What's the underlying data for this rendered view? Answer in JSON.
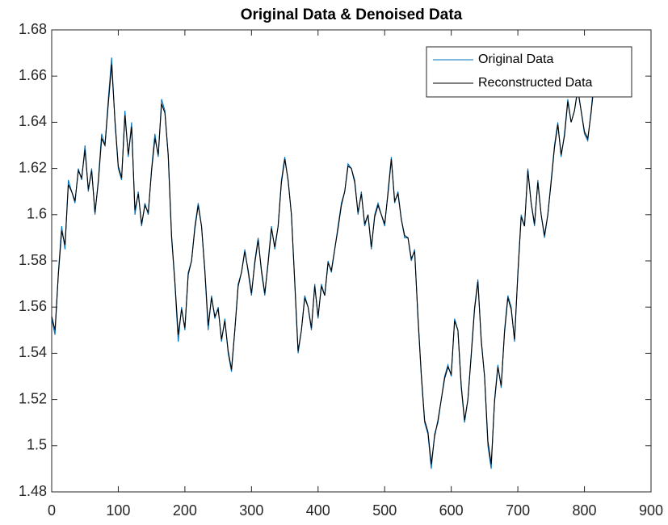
{
  "chart_data": {
    "type": "line",
    "title": "Original Data & Denoised Data",
    "x": [
      0,
      5,
      10,
      15,
      20,
      25,
      30,
      35,
      40,
      45,
      50,
      55,
      60,
      65,
      70,
      75,
      80,
      85,
      90,
      95,
      100,
      105,
      110,
      115,
      120,
      125,
      130,
      135,
      140,
      145,
      150,
      155,
      160,
      165,
      170,
      175,
      180,
      185,
      190,
      195,
      200,
      205,
      210,
      215,
      220,
      225,
      230,
      235,
      240,
      245,
      250,
      255,
      260,
      265,
      270,
      275,
      280,
      285,
      290,
      295,
      300,
      305,
      310,
      315,
      320,
      325,
      330,
      335,
      340,
      345,
      350,
      355,
      360,
      365,
      370,
      375,
      380,
      385,
      390,
      395,
      400,
      405,
      410,
      415,
      420,
      425,
      430,
      435,
      440,
      445,
      450,
      455,
      460,
      465,
      470,
      475,
      480,
      485,
      490,
      495,
      500,
      505,
      510,
      515,
      520,
      525,
      530,
      535,
      540,
      545,
      550,
      555,
      560,
      565,
      570,
      575,
      580,
      585,
      590,
      595,
      600,
      605,
      610,
      615,
      620,
      625,
      630,
      635,
      640,
      645,
      650,
      655,
      660,
      665,
      670,
      675,
      680,
      685,
      690,
      695,
      700,
      705,
      710,
      715,
      720,
      725,
      730,
      735,
      740,
      745,
      750,
      755,
      760,
      765,
      770,
      775,
      780,
      785,
      790,
      795,
      800,
      805,
      810,
      815,
      820,
      825
    ],
    "series": [
      {
        "name": "Original Data",
        "color": "#0072bd",
        "values": [
          1.555,
          1.548,
          1.575,
          1.595,
          1.585,
          1.615,
          1.61,
          1.605,
          1.62,
          1.615,
          1.63,
          1.61,
          1.62,
          1.6,
          1.615,
          1.635,
          1.63,
          1.65,
          1.668,
          1.64,
          1.62,
          1.615,
          1.645,
          1.625,
          1.64,
          1.6,
          1.61,
          1.595,
          1.605,
          1.6,
          1.62,
          1.635,
          1.625,
          1.65,
          1.645,
          1.625,
          1.59,
          1.57,
          1.545,
          1.56,
          1.55,
          1.575,
          1.58,
          1.595,
          1.605,
          1.595,
          1.575,
          1.55,
          1.565,
          1.555,
          1.56,
          1.545,
          1.555,
          1.54,
          1.532,
          1.55,
          1.57,
          1.575,
          1.585,
          1.575,
          1.565,
          1.58,
          1.59,
          1.575,
          1.565,
          1.58,
          1.595,
          1.585,
          1.595,
          1.615,
          1.625,
          1.615,
          1.6,
          1.57,
          1.54,
          1.55,
          1.565,
          1.56,
          1.55,
          1.57,
          1.555,
          1.57,
          1.565,
          1.58,
          1.575,
          1.585,
          1.595,
          1.605,
          1.61,
          1.622,
          1.62,
          1.615,
          1.6,
          1.61,
          1.595,
          1.6,
          1.585,
          1.6,
          1.605,
          1.6,
          1.595,
          1.61,
          1.625,
          1.605,
          1.61,
          1.598,
          1.59,
          1.59,
          1.58,
          1.585,
          1.555,
          1.53,
          1.51,
          1.505,
          1.49,
          1.505,
          1.51,
          1.52,
          1.53,
          1.535,
          1.53,
          1.555,
          1.55,
          1.525,
          1.51,
          1.52,
          1.54,
          1.56,
          1.572,
          1.545,
          1.53,
          1.5,
          1.49,
          1.52,
          1.535,
          1.525,
          1.55,
          1.565,
          1.56,
          1.545,
          1.575,
          1.6,
          1.595,
          1.62,
          1.605,
          1.595,
          1.615,
          1.6,
          1.59,
          1.6,
          1.615,
          1.63,
          1.64,
          1.625,
          1.635,
          1.65,
          1.64,
          1.645,
          1.655,
          1.645,
          1.635,
          1.632,
          1.645,
          1.66,
          1.67,
          1.67
        ]
      },
      {
        "name": "Reconstructed Data",
        "color": "#000000",
        "values": [
          1.556,
          1.55,
          1.574,
          1.593,
          1.587,
          1.613,
          1.61,
          1.606,
          1.619,
          1.616,
          1.628,
          1.611,
          1.619,
          1.601,
          1.614,
          1.633,
          1.63,
          1.648,
          1.665,
          1.641,
          1.621,
          1.616,
          1.643,
          1.626,
          1.638,
          1.602,
          1.609,
          1.596,
          1.604,
          1.601,
          1.619,
          1.633,
          1.626,
          1.648,
          1.644,
          1.626,
          1.591,
          1.571,
          1.548,
          1.559,
          1.551,
          1.574,
          1.58,
          1.594,
          1.604,
          1.595,
          1.576,
          1.552,
          1.564,
          1.556,
          1.559,
          1.546,
          1.554,
          1.541,
          1.533,
          1.55,
          1.569,
          1.575,
          1.584,
          1.576,
          1.566,
          1.579,
          1.589,
          1.576,
          1.566,
          1.579,
          1.594,
          1.586,
          1.595,
          1.614,
          1.624,
          1.615,
          1.6,
          1.571,
          1.541,
          1.55,
          1.564,
          1.56,
          1.551,
          1.569,
          1.556,
          1.569,
          1.565,
          1.579,
          1.576,
          1.585,
          1.594,
          1.604,
          1.61,
          1.621,
          1.62,
          1.614,
          1.601,
          1.609,
          1.596,
          1.6,
          1.586,
          1.599,
          1.604,
          1.6,
          1.596,
          1.609,
          1.624,
          1.606,
          1.609,
          1.598,
          1.591,
          1.59,
          1.581,
          1.584,
          1.556,
          1.531,
          1.511,
          1.506,
          1.492,
          1.504,
          1.511,
          1.52,
          1.529,
          1.534,
          1.531,
          1.554,
          1.55,
          1.526,
          1.511,
          1.52,
          1.539,
          1.559,
          1.571,
          1.546,
          1.53,
          1.502,
          1.492,
          1.519,
          1.534,
          1.526,
          1.549,
          1.564,
          1.559,
          1.546,
          1.574,
          1.599,
          1.595,
          1.619,
          1.605,
          1.596,
          1.614,
          1.6,
          1.591,
          1.6,
          1.614,
          1.629,
          1.639,
          1.626,
          1.634,
          1.649,
          1.64,
          1.645,
          1.654,
          1.645,
          1.636,
          1.633,
          1.644,
          1.658,
          1.668,
          1.669
        ]
      }
    ],
    "xlim": [
      0,
      900
    ],
    "ylim": [
      1.48,
      1.68
    ],
    "xticks": [
      0,
      100,
      200,
      300,
      400,
      500,
      600,
      700,
      800,
      900
    ],
    "yticks": [
      1.48,
      1.5,
      1.52,
      1.54,
      1.56,
      1.58,
      1.6,
      1.62,
      1.64,
      1.66,
      1.68
    ],
    "grid": false,
    "legend": "upper right"
  }
}
